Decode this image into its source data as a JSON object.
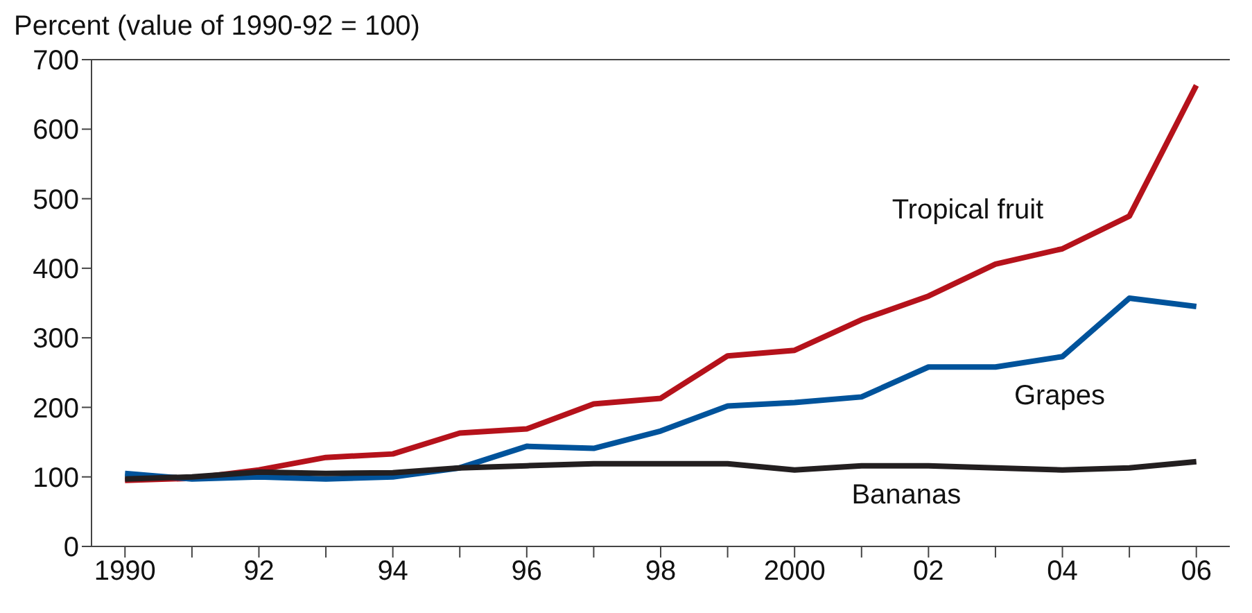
{
  "chart_data": {
    "type": "line",
    "ylabel": "Percent (value of 1990-92 = 100)",
    "x": [
      1990,
      1991,
      1992,
      1993,
      1994,
      1995,
      1996,
      1997,
      1998,
      1999,
      2000,
      2001,
      2002,
      2003,
      2004,
      2005,
      2006
    ],
    "series": [
      {
        "name": "Tropical fruit",
        "color": "#b5121b",
        "values": [
          95,
          98,
          110,
          128,
          133,
          163,
          169,
          205,
          213,
          274,
          282,
          326,
          360,
          406,
          428,
          475,
          663
        ]
      },
      {
        "name": "Grapes",
        "color": "#00539b",
        "values": [
          105,
          97,
          100,
          97,
          100,
          113,
          144,
          141,
          166,
          202,
          207,
          215,
          258,
          258,
          273,
          357,
          345
        ]
      },
      {
        "name": "Bananas",
        "color": "#231f20",
        "values": [
          97,
          100,
          107,
          105,
          106,
          113,
          116,
          119,
          119,
          119,
          110,
          116,
          116,
          113,
          110,
          113,
          122
        ]
      }
    ],
    "xlim": [
      1989.5,
      2006.5
    ],
    "xticks": [
      1990,
      {
        "value": 1991,
        "label": null
      },
      {
        "value": 1992,
        "label": "92"
      },
      {
        "value": 1993,
        "label": null
      },
      {
        "value": 1994,
        "label": "94"
      },
      {
        "value": 1995,
        "label": null
      },
      {
        "value": 1996,
        "label": "96"
      },
      {
        "value": 1997,
        "label": null
      },
      {
        "value": 1998,
        "label": "98"
      },
      {
        "value": 1999,
        "label": null
      },
      2000,
      {
        "value": 2001,
        "label": null
      },
      {
        "value": 2002,
        "label": "02"
      },
      {
        "value": 2003,
        "label": null
      },
      {
        "value": 2004,
        "label": "04"
      },
      {
        "value": 2005,
        "label": null
      },
      {
        "value": 2006,
        "label": "06"
      }
    ],
    "ylim": [
      0,
      700
    ],
    "yticks": [
      0,
      100,
      200,
      300,
      400,
      500,
      600,
      700
    ],
    "marker": "none",
    "line_style": "solid"
  }
}
